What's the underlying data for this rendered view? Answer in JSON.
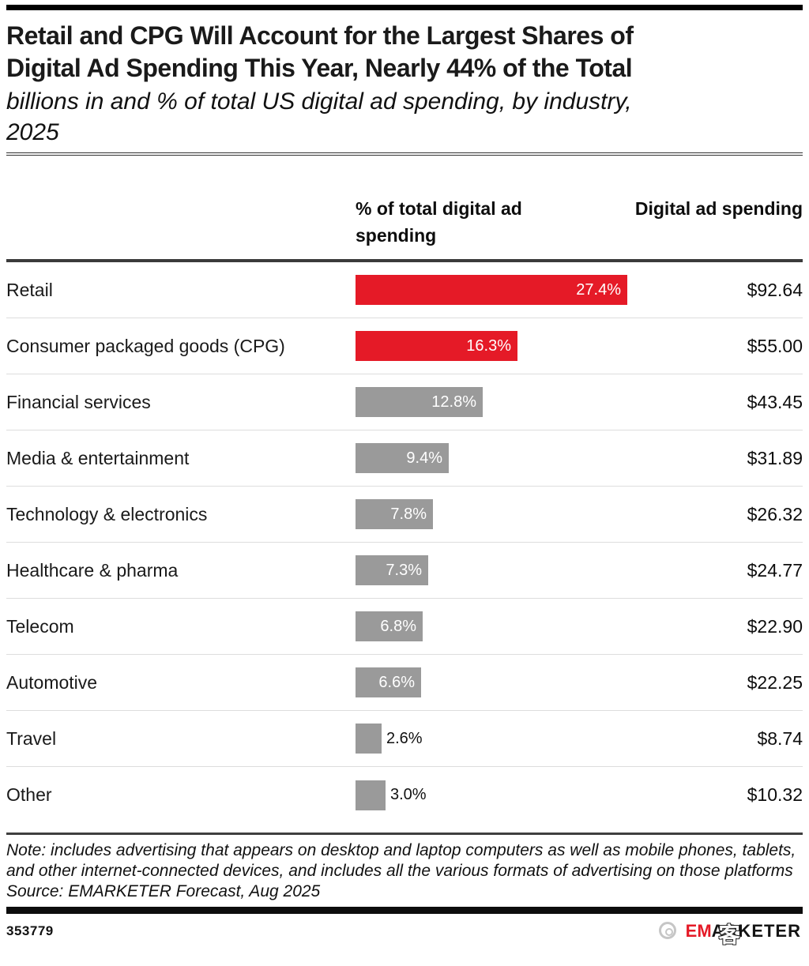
{
  "title": {
    "lines": [
      "Retail and CPG Will Account for the Largest Shares of",
      "Digital Ad Spending This Year, Nearly 44% of the Total"
    ]
  },
  "subtitle": {
    "lines": [
      "billions in and % of total US digital ad spending, by industry,",
      "2025"
    ]
  },
  "columns": {
    "share_header": "% of total digital ad spending",
    "spending_header": "Digital ad spending"
  },
  "rows": [
    {
      "label": "Retail",
      "pct": 27.4,
      "share": "27.4%",
      "value": "$92.64",
      "emphasis": true
    },
    {
      "label": "Consumer packaged goods (CPG)",
      "pct": 16.3,
      "share": "16.3%",
      "value": "$55.00",
      "emphasis": true
    },
    {
      "label": "Financial services",
      "pct": 12.8,
      "share": "12.8%",
      "value": "$43.45",
      "emphasis": false
    },
    {
      "label": "Media & entertainment",
      "pct": 9.4,
      "share": "9.4%",
      "value": "$31.89",
      "emphasis": false
    },
    {
      "label": "Technology & electronics",
      "pct": 7.8,
      "share": "7.8%",
      "value": "$26.32",
      "emphasis": false
    },
    {
      "label": "Healthcare & pharma",
      "pct": 7.3,
      "share": "7.3%",
      "value": "$24.77",
      "emphasis": false
    },
    {
      "label": "Telecom",
      "pct": 6.8,
      "share": "6.8%",
      "value": "$22.90",
      "emphasis": false
    },
    {
      "label": "Automotive",
      "pct": 6.6,
      "share": "6.6%",
      "value": "$22.25",
      "emphasis": false
    },
    {
      "label": "Travel",
      "pct": 2.6,
      "share": "2.6%",
      "value": "$8.74",
      "emphasis": false
    },
    {
      "label": "Other",
      "pct": 3.0,
      "share": "3.0%",
      "value": "$10.32",
      "emphasis": false
    }
  ],
  "chart_data": {
    "type": "bar",
    "orientation": "horizontal",
    "title": "Retail and CPG Will Account for the Largest Shares of Digital Ad Spending This Year, Nearly 44% of the Total",
    "subtitle": "billions in and % of total US digital ad spending, by industry, 2025",
    "categories": [
      "Retail",
      "Consumer packaged goods (CPG)",
      "Financial services",
      "Media & entertainment",
      "Technology & electronics",
      "Healthcare & pharma",
      "Telecom",
      "Automotive",
      "Travel",
      "Other"
    ],
    "series": [
      {
        "name": "% of total digital ad spending",
        "unit": "%",
        "values": [
          27.4,
          16.3,
          12.8,
          9.4,
          7.8,
          7.3,
          6.8,
          6.6,
          2.6,
          3.0
        ]
      },
      {
        "name": "Digital ad spending",
        "unit": "billions USD",
        "values": [
          92.64,
          55.0,
          43.45,
          31.89,
          26.32,
          24.77,
          22.9,
          22.25,
          8.74,
          10.32
        ]
      }
    ],
    "highlight_categories": [
      "Retail",
      "Consumer packaged goods (CPG)"
    ],
    "xlim": [
      0,
      30
    ],
    "grid": false,
    "legend_position": "none"
  },
  "note": "Note: includes advertising that appears on desktop and laptop computers as well as mobile phones, tablets, and other internet-connected devices, and includes all the various formats of advertising on those platforms",
  "source": "Source: EMARKETER Forecast, Aug 2025",
  "footer": {
    "chart_id": "353779",
    "logo": {
      "brand_red": "EM",
      "brand_black": "ARKETER"
    },
    "watermark": {
      "char": "客"
    }
  },
  "colors": {
    "accent_red": "#E51A27",
    "bar_red": "#E51A27",
    "bar_gray": "#9A9A9A",
    "divider_light": "#DDDDDD",
    "rule_dark": "#3B3B3B",
    "black": "#0D0D0D"
  }
}
